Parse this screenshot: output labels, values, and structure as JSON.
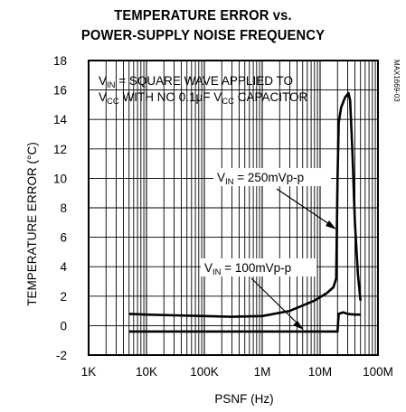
{
  "title_line1": "TEMPERATURE ERROR vs.",
  "title_line2": "POWER-SUPPLY NOISE FREQUENCY",
  "part_code": "MAX1669-03",
  "chart_data": {
    "type": "line",
    "title": "TEMPERATURE ERROR vs. POWER-SUPPLY NOISE FREQUENCY",
    "xlabel": "PSNF (Hz)",
    "ylabel": "TEMPERATURE ERROR (°C)",
    "xscale": "log",
    "xlim": [
      1000,
      100000000
    ],
    "ylim": [
      -2,
      18
    ],
    "xticks": [
      "1K",
      "10K",
      "100K",
      "1M",
      "10M",
      "100M"
    ],
    "yticks": [
      "-2",
      "0",
      "2",
      "4",
      "6",
      "8",
      "10",
      "12",
      "14",
      "16",
      "18"
    ],
    "grid": true,
    "annotations": {
      "condition": {
        "line1_pre": "V",
        "line1_sub": "IN",
        "line1_post": " = SQUARE WAVE APPLIED TO",
        "line2_a": "V",
        "line2_a_sub": "CC",
        "line2_b": " WITH NO 0.1μF V",
        "line2_b_sub": "CC",
        "line2_c": " CAPACITOR"
      },
      "label_250": {
        "pre": "V",
        "sub": "IN",
        "post": " = 250mVp-p"
      },
      "label_100": {
        "pre": "V",
        "sub": "IN",
        "post": " = 100mVp-p"
      }
    },
    "series": [
      {
        "values_desc": "250mVp-p",
        "x": [
          5000,
          10000,
          30000,
          100000,
          300000,
          1000000,
          3000000,
          8000000,
          13000000,
          17000000,
          19000000,
          20000000,
          21000000,
          23000000,
          27000000,
          31000000,
          33000000,
          36000000,
          40000000,
          45000000,
          50000000
        ],
        "y": [
          0.8,
          0.75,
          0.7,
          0.65,
          0.6,
          0.65,
          1.0,
          1.7,
          2.2,
          2.6,
          3.2,
          10.0,
          13.8,
          14.8,
          15.5,
          15.8,
          15.3,
          12.0,
          7.0,
          3.5,
          1.7
        ]
      },
      {
        "values_desc": "100mVp-p",
        "x": [
          5000,
          10000,
          100000,
          1000000,
          10000000,
          20000000,
          20500000,
          21000000,
          25000000,
          30000000,
          40000000,
          50000000
        ],
        "y": [
          -0.4,
          -0.4,
          -0.4,
          -0.4,
          -0.4,
          -0.4,
          0.3,
          0.8,
          0.9,
          0.8,
          0.75,
          0.75
        ]
      }
    ]
  }
}
